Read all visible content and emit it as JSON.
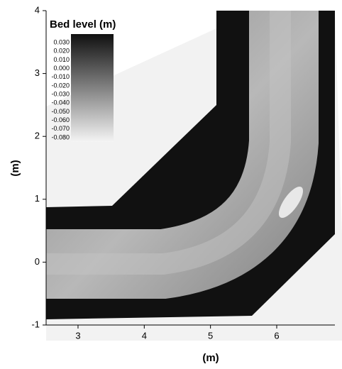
{
  "chart_data": {
    "type": "heatmap",
    "colorbar_title": "Bed level (m)",
    "xlabel": "(m)",
    "ylabel": "(m)",
    "xlim": [
      2.5,
      6.9
    ],
    "ylim": [
      -1,
      4
    ],
    "xticks": [
      3,
      4,
      5,
      6
    ],
    "yticks": [
      -1,
      0,
      1,
      2,
      3,
      4
    ],
    "colormap": [
      "#f4f4f4",
      "#101010"
    ],
    "clim": [
      -0.085,
      0.04
    ],
    "colorbar_ticks": [
      {
        "value": 0.03,
        "label": "0.030"
      },
      {
        "value": 0.02,
        "label": "0.020"
      },
      {
        "value": 0.01,
        "label": "0.010"
      },
      {
        "value": 0.0,
        "label": "0.000"
      },
      {
        "value": -0.01,
        "label": "-0.010"
      },
      {
        "value": -0.02,
        "label": "-0.020"
      },
      {
        "value": -0.03,
        "label": "-0.030"
      },
      {
        "value": -0.04,
        "label": "-0.040"
      },
      {
        "value": -0.05,
        "label": "-0.050"
      },
      {
        "value": -0.06,
        "label": "-0.060"
      },
      {
        "value": -0.07,
        "label": "-0.070"
      },
      {
        "value": -0.08,
        "label": "-0.080"
      }
    ]
  }
}
